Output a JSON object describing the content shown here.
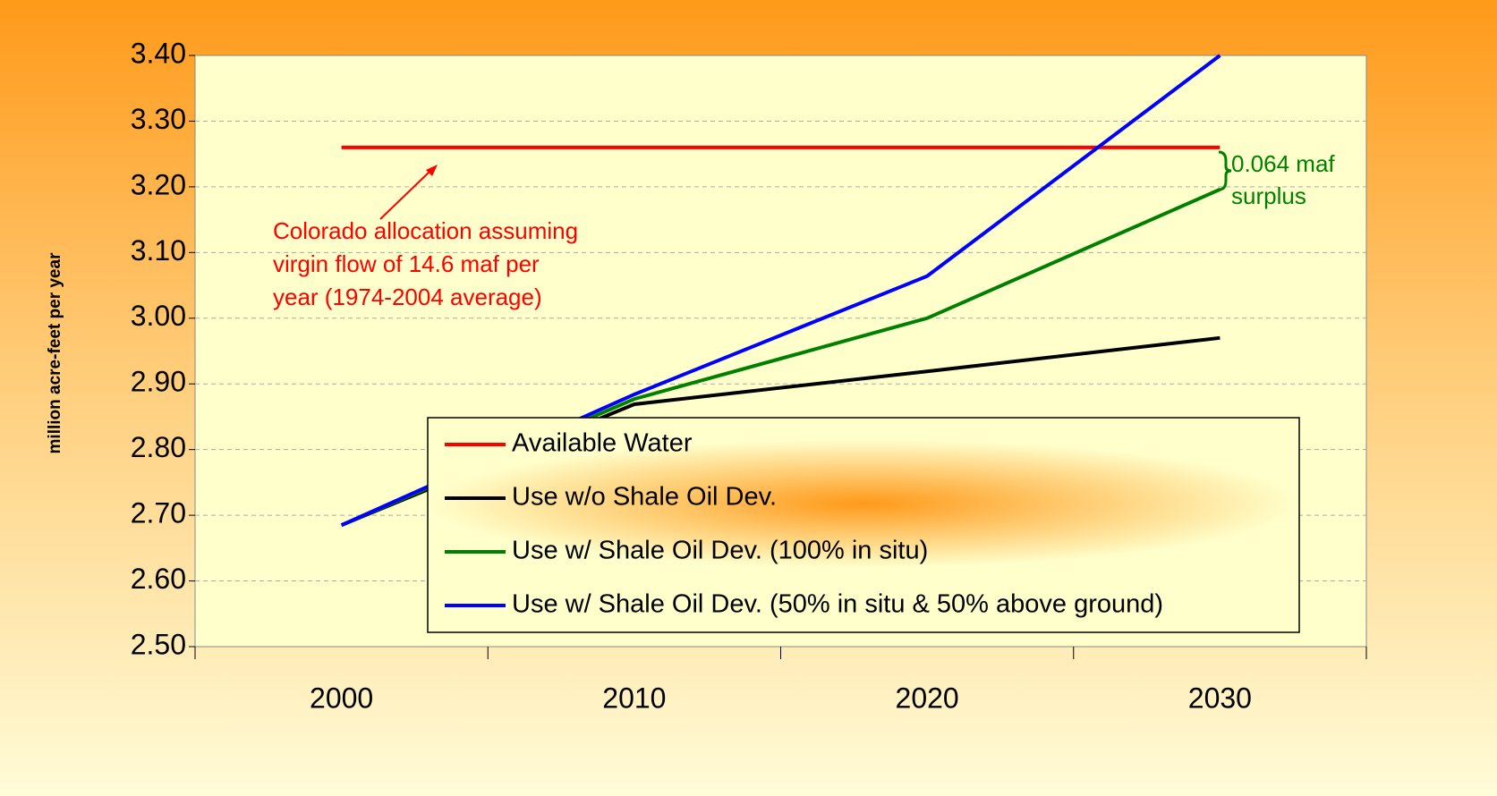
{
  "chart_data": {
    "type": "line",
    "ylabel": "million acre-feet per year",
    "categories": [
      "2000",
      "2010",
      "2020",
      "2030"
    ],
    "ylim": [
      2.5,
      3.4
    ],
    "yticks": [
      {
        "value": 2.5,
        "label": "2.50"
      },
      {
        "value": 2.6,
        "label": "2.60"
      },
      {
        "value": 2.7,
        "label": "2.70"
      },
      {
        "value": 2.8,
        "label": "2.80"
      },
      {
        "value": 2.9,
        "label": "2.90"
      },
      {
        "value": 3.0,
        "label": "3.00"
      },
      {
        "value": 3.1,
        "label": "3.10"
      },
      {
        "value": 3.2,
        "label": "3.20"
      },
      {
        "value": 3.3,
        "label": "3.30"
      },
      {
        "value": 3.4,
        "label": "3.40"
      }
    ],
    "grid": true,
    "legend": "bottom-right",
    "series": [
      {
        "name": "Available Water",
        "color": "#ff0000",
        "values": [
          3.26,
          3.26,
          3.26,
          3.26
        ]
      },
      {
        "name": "Use w/o Shale Oil Dev.",
        "color": "#000000",
        "values": [
          2.685,
          2.869,
          2.919,
          2.97
        ]
      },
      {
        "name": "Use w/ Shale Oil Dev. (100% in situ)",
        "color": "#008000",
        "values": [
          2.685,
          2.877,
          3.0,
          3.196
        ]
      },
      {
        "name": "Use w/ Shale Oil Dev. (50% in situ & 50% above ground)",
        "color": "#0000ff",
        "values": [
          2.685,
          2.884,
          3.064,
          3.4
        ]
      }
    ],
    "annotations": [
      {
        "lines": [
          "Colorado allocation assuming",
          "virgin flow of 14.6 maf per",
          "year (1974-2004 average)"
        ],
        "color": "#ff0000"
      },
      {
        "lines": [
          "0.064 maf",
          "surplus"
        ],
        "color": "#008000"
      }
    ]
  }
}
